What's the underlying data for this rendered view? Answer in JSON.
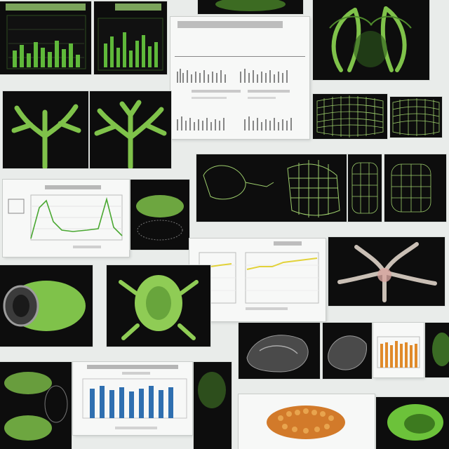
{
  "collage": {
    "tile_count": 30,
    "theme_colors": {
      "background": "#e9ecea",
      "tile_dark": "#0d0d0d",
      "specimen_green": "#7fc24a",
      "wireframe_green": "#9ccc6b",
      "chart_bar_blue": "#2f6fb0",
      "chart_bar_green": "#5fb83a",
      "chart_line_green": "#4aa832",
      "chart_line_yellow": "#e2d23a",
      "chart_bar_orange": "#e08a2a",
      "pod_orange": "#d27a2a"
    },
    "icons": [
      "green-bar-chart-icon",
      "specimen-claw-icon",
      "branching-structure-icon",
      "wireframe-mesh-icon",
      "line-chart-icon",
      "pod-specimen-icon",
      "coral-branch-icon"
    ]
  }
}
